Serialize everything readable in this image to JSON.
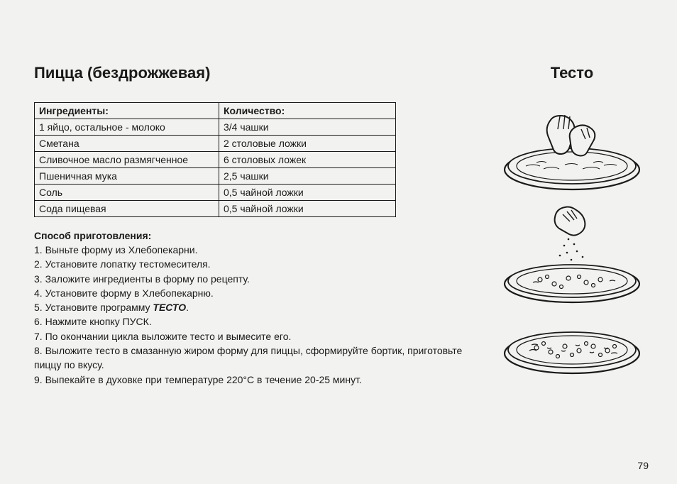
{
  "title_left": "Пицца (бездрожжевая)",
  "title_right": "Тесто",
  "table": {
    "headers": [
      "Ингредиенты:",
      "Количество:"
    ],
    "rows": [
      [
        "1 яйцо, остальное - молоко",
        "3/4 чашки"
      ],
      [
        "Сметана",
        "2 столовые ложки"
      ],
      [
        "Сливочное масло размягченное",
        "6 столовых ложек"
      ],
      [
        "Пшеничная мука",
        "2,5 чашки"
      ],
      [
        "Соль",
        "0,5 чайной ложки"
      ],
      [
        "Сода пищевая",
        "0,5 чайной ложки"
      ]
    ]
  },
  "method_title": "Способ приготовления:",
  "steps": [
    "1. Выньте форму из Хлебопекарни.",
    "2. Установите лопатку тестомесителя.",
    "3. Заложите ингредиенты в форму по рецепту.",
    "4. Установите форму в Хлебопекарню.",
    {
      "prefix": "5. Установите программу ",
      "bold": "ТЕСТО",
      "suffix": "."
    },
    "6. Нажмите кнопку ПУСК.",
    "7. По окончании цикла выложите тесто и вымесите его.",
    "8. Выложите тесто в смазанную жиром форму для пиццы, сформируйте бортик, приготовьте пиццу по вкусу.",
    "9. Выпекайте в духовке при температуре 220°C в течение 20-25 минут."
  ],
  "page_number": "79",
  "illustration": {
    "stroke": "#1a1a1a",
    "fill": "#ffffff",
    "bg": "#f2f2f0"
  }
}
